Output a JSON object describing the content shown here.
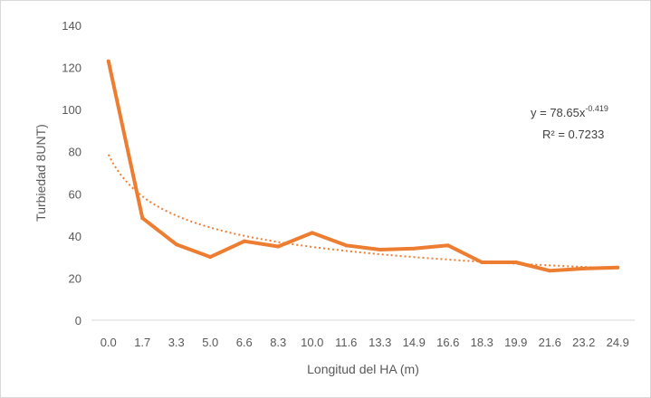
{
  "chart_data": {
    "type": "line",
    "title": "",
    "xlabel": "Longitud del HA (m)",
    "ylabel": "Turbiedad 8UNT)",
    "categories": [
      "0.0",
      "1.7",
      "3.3",
      "5.0",
      "6.6",
      "8.3",
      "10.0",
      "11.6",
      "13.3",
      "14.9",
      "16.6",
      "18.3",
      "19.9",
      "21.6",
      "23.2",
      "24.9"
    ],
    "series": [
      {
        "values": [
          123,
          48.5,
          36,
          30,
          37.5,
          35,
          41.5,
          35.5,
          33.5,
          34,
          35.5,
          27.5,
          27.5,
          23.5,
          24.5,
          25
        ]
      }
    ],
    "trendline": {
      "type": "power",
      "a": 78.65,
      "b": -0.419,
      "equation_prefix": "y = 78.65x",
      "equation_exponent": "-0.419",
      "r2_label": "R² = 0.7233"
    },
    "y_ticks": [
      "0",
      "20",
      "40",
      "60",
      "80",
      "100",
      "120",
      "140"
    ],
    "ylim": [
      0,
      140
    ],
    "grid": false,
    "legend": "none",
    "colors": {
      "series": "#ED7D31",
      "trend": "#ED7D31",
      "axis": "#d9d9d9",
      "text": "#595959"
    }
  }
}
